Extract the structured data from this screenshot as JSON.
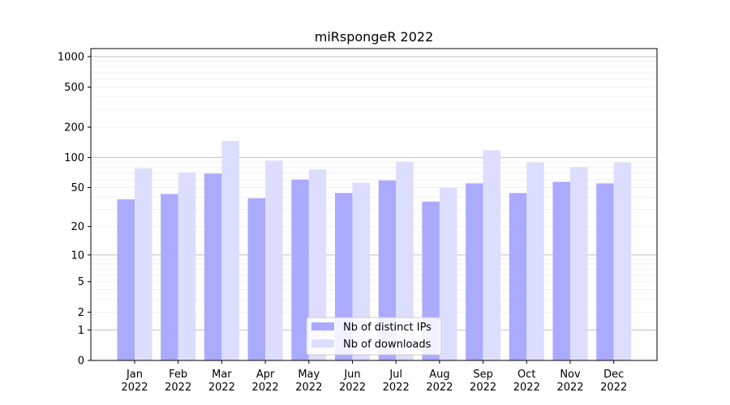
{
  "chart_data": {
    "type": "bar",
    "title": "miRspongeR 2022",
    "xlabel": "",
    "ylabel": "",
    "y_scale": "symlog",
    "ylim": [
      0,
      1200
    ],
    "y_ticks": [
      0,
      1,
      2,
      5,
      10,
      20,
      50,
      100,
      200,
      500,
      1000
    ],
    "grid": "horizontal",
    "legend_position": "bottom-center",
    "categories": [
      {
        "month": "Jan",
        "year": "2022"
      },
      {
        "month": "Feb",
        "year": "2022"
      },
      {
        "month": "Mar",
        "year": "2022"
      },
      {
        "month": "Apr",
        "year": "2022"
      },
      {
        "month": "May",
        "year": "2022"
      },
      {
        "month": "Jun",
        "year": "2022"
      },
      {
        "month": "Jul",
        "year": "2022"
      },
      {
        "month": "Aug",
        "year": "2022"
      },
      {
        "month": "Sep",
        "year": "2022"
      },
      {
        "month": "Oct",
        "year": "2022"
      },
      {
        "month": "Nov",
        "year": "2022"
      },
      {
        "month": "Dec",
        "year": "2022"
      }
    ],
    "series": [
      {
        "name": "Nb of distinct IPs",
        "color": "#aaaaff",
        "values": [
          38,
          43,
          69,
          39,
          60,
          44,
          59,
          36,
          55,
          44,
          57,
          55
        ]
      },
      {
        "name": "Nb of downloads",
        "color": "#ddddff",
        "values": [
          78,
          71,
          146,
          93,
          76,
          56,
          91,
          50,
          118,
          89,
          80,
          89
        ]
      }
    ]
  }
}
